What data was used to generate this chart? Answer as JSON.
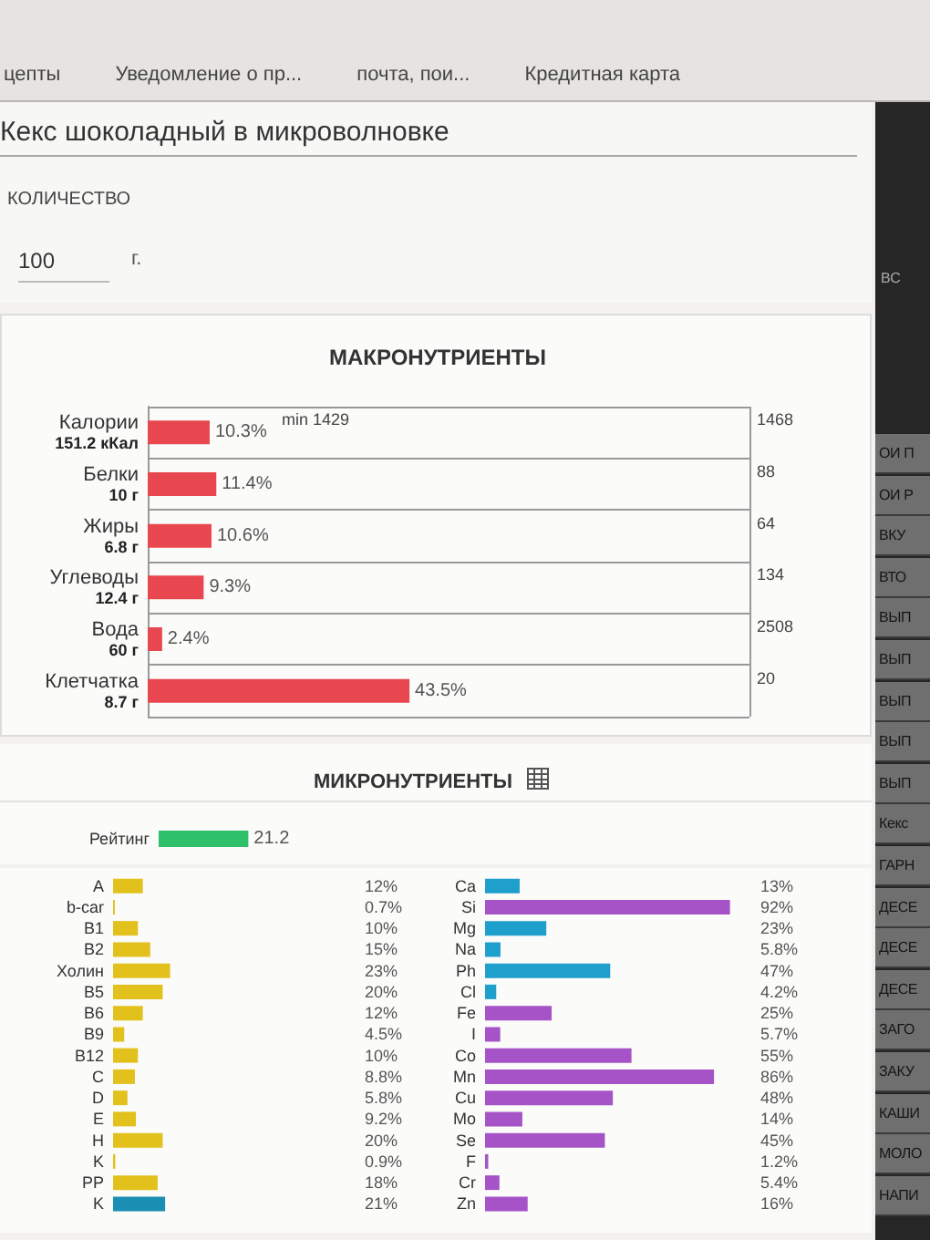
{
  "chart_data": [
    {
      "type": "other",
      "annotations": [
        "цепты",
        "Уведомление о пр...",
        "почта, пои...",
        "Кредитная карта"
      ]
    },
    {
      "type": "other",
      "title": "Кекс шоколадный в микроволновке",
      "annotations": [
        "КОЛИЧЕСТВО",
        "100",
        "г."
      ]
    },
    {
      "type": "bar",
      "orientation": "horizontal",
      "title": "МАКРОНУТРИЕНТЫ",
      "categories": [
        "Калории\n151.2 кКал",
        "Белки\n10 г",
        "Жиры\n6.8 г",
        "Углеводы\n12.4 г",
        "Вода\n60 г",
        "Клетчатка\n8.7 г"
      ],
      "values": [
        10.3,
        11.4,
        10.6,
        9.3,
        2.4,
        43.5
      ],
      "value_labels": [
        "10.3%",
        "11.4%",
        "10.6%",
        "9.3%",
        "2.4%",
        "43.5%"
      ],
      "color": "#e8474f",
      "grid": "y",
      "tick_labels": "y",
      "ref_lines": [
        {
          "axis": "x",
          "value": 100
        }
      ],
      "annotations": [
        "min 1429",
        "1468",
        "88",
        "64",
        "134",
        "2508",
        "20"
      ]
    },
    {
      "type": "other",
      "title": "МИКРОНУТРИЕНТЫ"
    },
    {
      "type": "bar",
      "orientation": "horizontal",
      "categories": [
        "Рейтинг"
      ],
      "values": [
        21.2
      ],
      "data_labels": true,
      "color": "#2ec06a",
      "tick_labels": "y"
    },
    {
      "type": "bar",
      "orientation": "horizontal",
      "categories": [
        "A",
        "b-car",
        "B1",
        "B2",
        "Холин",
        "B5",
        "B6",
        "B9",
        "B12",
        "C",
        "D",
        "E",
        "H",
        "K",
        "PP",
        "K"
      ],
      "values": [
        12,
        0.7,
        10,
        15,
        23,
        20,
        12,
        4.5,
        10,
        8.8,
        5.8,
        9.2,
        20,
        0.9,
        18,
        21
      ],
      "value_labels": [
        "12%",
        "0.7%",
        "10%",
        "15%",
        "23%",
        "20%",
        "12%",
        "4.5%",
        "10%",
        "8.8%",
        "5.8%",
        "9.2%",
        "20%",
        "0.9%",
        "18%",
        "21%"
      ],
      "colors": [
        "#e2c11c",
        "#e2c11c",
        "#e2c11c",
        "#e2c11c",
        "#e2c11c",
        "#e2c11c",
        "#e2c11c",
        "#e2c11c",
        "#e2c11c",
        "#e2c11c",
        "#e2c11c",
        "#e2c11c",
        "#e2c11c",
        "#e2c11c",
        "#e2c11c",
        "#1b8fb3"
      ],
      "tick_labels": "y"
    },
    {
      "type": "bar",
      "orientation": "horizontal",
      "categories": [
        "Ca",
        "Si",
        "Mg",
        "Na",
        "Ph",
        "Cl",
        "Fe",
        "I",
        "Co",
        "Mn",
        "Cu",
        "Mo",
        "Se",
        "F",
        "Cr",
        "Zn"
      ],
      "values": [
        13,
        92,
        23,
        5.8,
        47,
        4.2,
        25,
        5.7,
        55,
        86,
        48,
        14,
        45,
        1.2,
        5.4,
        16
      ],
      "value_labels": [
        "13%",
        "92%",
        "23%",
        "5.8%",
        "47%",
        "4.2%",
        "25%",
        "5.7%",
        "55%",
        "86%",
        "48%",
        "14%",
        "45%",
        "1.2%",
        "5.4%",
        "16%"
      ],
      "colors": [
        "#1f9fcb",
        "#a553c6",
        "#1f9fcb",
        "#1f9fcb",
        "#1f9fcb",
        "#1f9fcb",
        "#a553c6",
        "#a553c6",
        "#a553c6",
        "#a553c6",
        "#a553c6",
        "#a553c6",
        "#a553c6",
        "#a553c6",
        "#a553c6",
        "#a553c6"
      ],
      "tick_labels": "y"
    },
    {
      "type": "other",
      "annotations": [
        "ВС",
        "ОИ П",
        "ОИ Р",
        "ВКУ",
        "ВТО",
        "ВЫП",
        "ВЫП",
        "ВЫП",
        "ВЫП",
        "ВЫП",
        "Кекс",
        "ГАРН",
        "ДЕСЕ",
        "ДЕСЕ",
        "ДЕСЕ",
        "ЗАГО",
        "ЗАКУ",
        "КАШИ",
        "МОЛО",
        "НАПИ"
      ]
    }
  ]
}
